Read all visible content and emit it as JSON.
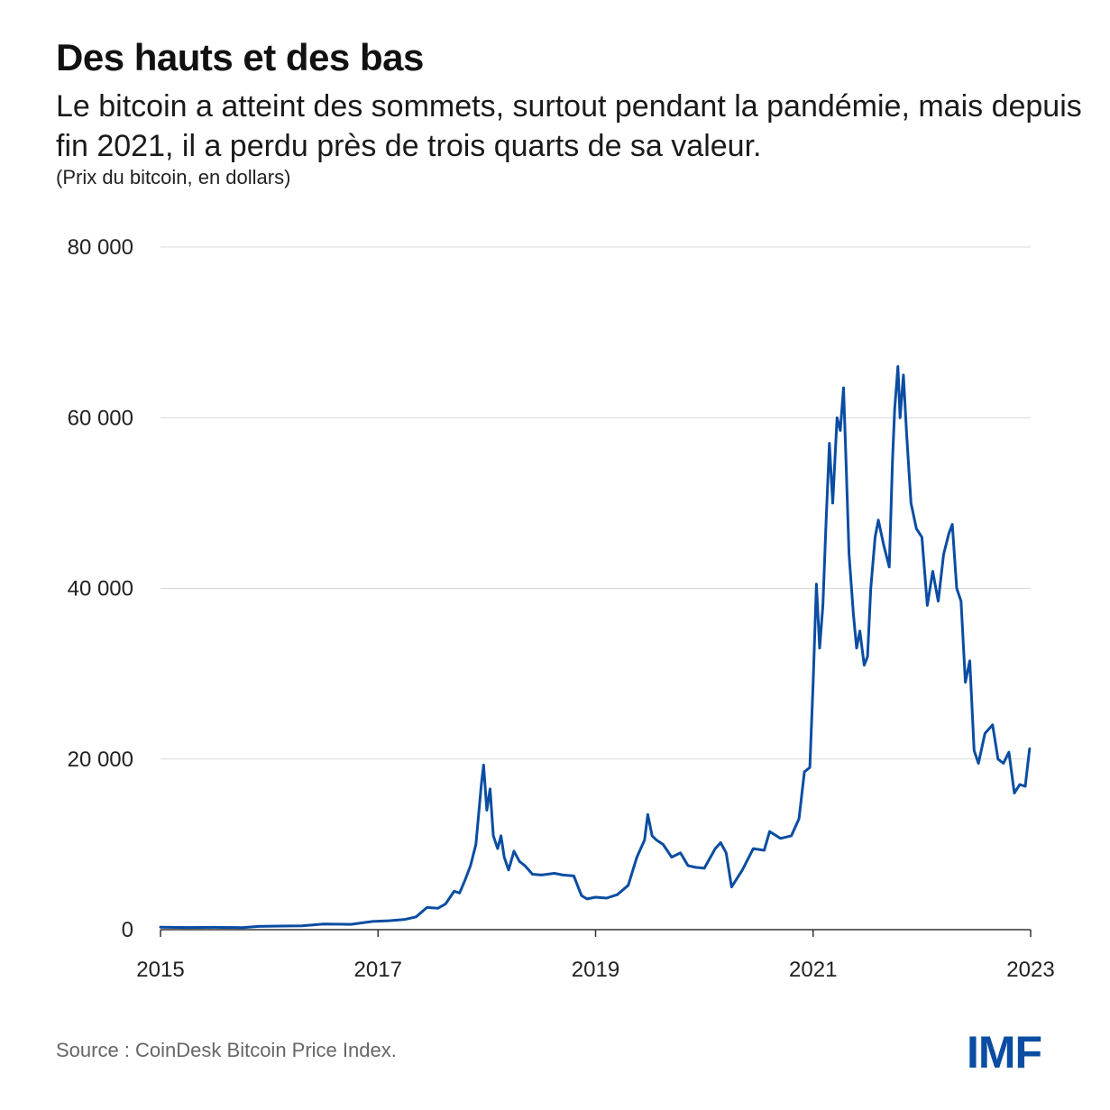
{
  "header": {
    "title": "Des hauts et des bas",
    "subtitle": "Le bitcoin a atteint des sommets, surtout pendant la pandémie, mais depuis fin 2021, il a perdu près de trois quarts de sa valeur.",
    "unit_note": "(Prix du bitcoin, en dollars)"
  },
  "footer": {
    "source": "Source : CoinDesk Bitcoin Price Index.",
    "logo_text": "IMF"
  },
  "colors": {
    "line": "#0a4da2",
    "grid": "#d9d9d9",
    "axis": "#333333"
  },
  "chart_data": {
    "type": "line",
    "title": "Des hauts et des bas",
    "xlabel": "",
    "ylabel": "",
    "xlim": [
      2015,
      2023
    ],
    "ylim": [
      0,
      80000
    ],
    "y_ticks": [
      0,
      20000,
      40000,
      60000,
      80000
    ],
    "y_tick_labels": [
      "0",
      "20 000",
      "40 000",
      "60 000",
      "80 000"
    ],
    "x_ticks": [
      2015,
      2017,
      2019,
      2021,
      2023
    ],
    "x_tick_labels": [
      "2015",
      "2017",
      "2019",
      "2021",
      "2023"
    ],
    "grid": true,
    "series": [
      {
        "name": "",
        "x": [
          2015.0,
          2015.25,
          2015.5,
          2015.75,
          2015.9,
          2016.1,
          2016.3,
          2016.5,
          2016.75,
          2016.95,
          2017.1,
          2017.25,
          2017.35,
          2017.45,
          2017.55,
          2017.62,
          2017.7,
          2017.75,
          2017.8,
          2017.85,
          2017.9,
          2017.95,
          2017.97,
          2018.0,
          2018.03,
          2018.06,
          2018.1,
          2018.13,
          2018.16,
          2018.2,
          2018.25,
          2018.3,
          2018.35,
          2018.42,
          2018.5,
          2018.56,
          2018.62,
          2018.7,
          2018.8,
          2018.87,
          2018.92,
          2019.0,
          2019.1,
          2019.2,
          2019.3,
          2019.38,
          2019.45,
          2019.48,
          2019.52,
          2019.56,
          2019.62,
          2019.7,
          2019.78,
          2019.85,
          2019.92,
          2020.0,
          2020.1,
          2020.15,
          2020.2,
          2020.25,
          2020.35,
          2020.45,
          2020.55,
          2020.6,
          2020.7,
          2020.8,
          2020.87,
          2020.92,
          2020.97,
          2021.0,
          2021.03,
          2021.06,
          2021.09,
          2021.12,
          2021.15,
          2021.18,
          2021.22,
          2021.25,
          2021.28,
          2021.3,
          2021.33,
          2021.37,
          2021.4,
          2021.43,
          2021.47,
          2021.5,
          2021.53,
          2021.57,
          2021.6,
          2021.65,
          2021.7,
          2021.73,
          2021.75,
          2021.78,
          2021.8,
          2021.83,
          2021.86,
          2021.9,
          2021.95,
          2022.0,
          2022.05,
          2022.1,
          2022.15,
          2022.2,
          2022.25,
          2022.28,
          2022.32,
          2022.36,
          2022.4,
          2022.44,
          2022.48,
          2022.52,
          2022.58,
          2022.65,
          2022.7,
          2022.75,
          2022.8,
          2022.85,
          2022.9,
          2022.95,
          2022.99
        ],
        "y": [
          300,
          250,
          280,
          240,
          380,
          420,
          440,
          650,
          620,
          960,
          1050,
          1200,
          1500,
          2600,
          2500,
          3000,
          4500,
          4300,
          5800,
          7500,
          10000,
          17000,
          19300,
          14000,
          16500,
          11000,
          9500,
          11000,
          8500,
          7000,
          9200,
          8000,
          7500,
          6500,
          6400,
          6500,
          6600,
          6400,
          6300,
          4000,
          3600,
          3800,
          3700,
          4100,
          5200,
          8500,
          10500,
          13500,
          11000,
          10500,
          10000,
          8500,
          9000,
          7500,
          7300,
          7200,
          9500,
          10200,
          9000,
          5000,
          7000,
          9500,
          9300,
          11500,
          10700,
          11000,
          13000,
          18500,
          19000,
          29000,
          40500,
          33000,
          38000,
          48000,
          57000,
          50000,
          60000,
          58500,
          63500,
          56000,
          44000,
          37000,
          33000,
          35000,
          31000,
          32000,
          40000,
          46000,
          48000,
          45000,
          42500,
          55000,
          61000,
          66000,
          60000,
          65000,
          58000,
          50000,
          47000,
          46000,
          38000,
          42000,
          38500,
          44000,
          46500,
          47500,
          40000,
          38500,
          29000,
          31500,
          21000,
          19500,
          23000,
          24000,
          20000,
          19500,
          20800,
          16000,
          17000,
          16800,
          21200
        ]
      }
    ]
  }
}
